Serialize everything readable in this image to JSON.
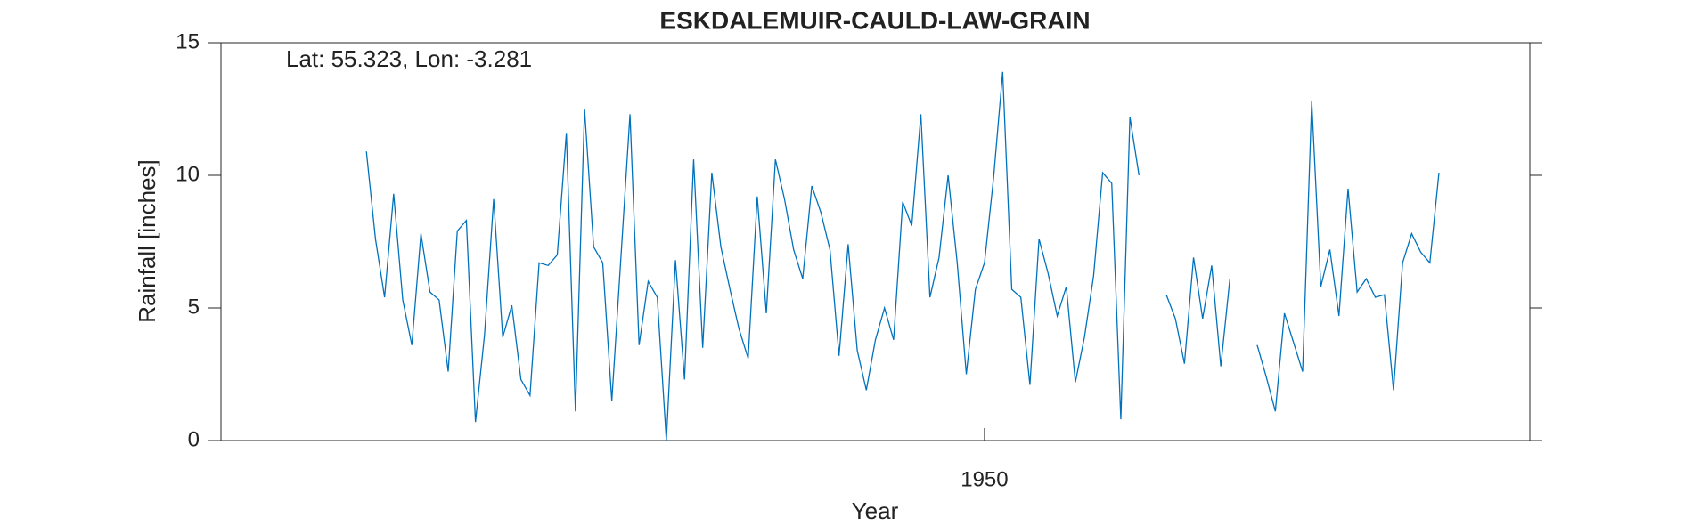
{
  "chart_data": {
    "type": "line",
    "title": "ESKDALEMUIR-CAULD-LAW-GRAIN",
    "annotation": "Lat: 55.323, Lon: -3.281",
    "x_label": "Year",
    "y_label": "Rainfall [inches]",
    "xlim": [
      1866,
      2010
    ],
    "xticks": [
      1950
    ],
    "ylim": [
      0,
      15
    ],
    "yticks": [
      0,
      5,
      10,
      15
    ],
    "x": [
      1882,
      1883,
      1884,
      1885,
      1886,
      1887,
      1888,
      1889,
      1890,
      1891,
      1892,
      1893,
      1894,
      1895,
      1896,
      1897,
      1898,
      1899,
      1900,
      1901,
      1902,
      1903,
      1904,
      1905,
      1906,
      1907,
      1908,
      1909,
      1910,
      1911,
      1912,
      1913,
      1914,
      1915,
      1916,
      1917,
      1918,
      1919,
      1920,
      1921,
      1922,
      1923,
      1924,
      1925,
      1926,
      1927,
      1928,
      1929,
      1930,
      1931,
      1932,
      1933,
      1934,
      1935,
      1936,
      1937,
      1938,
      1939,
      1940,
      1941,
      1942,
      1943,
      1944,
      1945,
      1946,
      1947,
      1948,
      1949,
      1950,
      1951,
      1952,
      1953,
      1954,
      1955,
      1956,
      1957,
      1958,
      1959,
      1960,
      1961,
      1962,
      1963,
      1964,
      1965,
      1966,
      1967,
      1968,
      1969,
      1970,
      1971,
      1972,
      1973,
      1974,
      1975,
      1976,
      1977,
      1978,
      1979,
      1980,
      1981,
      1982,
      1983,
      1984,
      1985,
      1986,
      1987,
      1988,
      1989,
      1990,
      1991,
      1992,
      1993,
      1994,
      1995,
      1996,
      1997,
      1998,
      1999,
      2000
    ],
    "series": [
      {
        "color": "#0072bd",
        "values": [
          10.9,
          7.6,
          5.4,
          9.3,
          5.3,
          3.6,
          7.8,
          5.6,
          5.3,
          2.6,
          7.9,
          8.3,
          0.7,
          4.0,
          9.1,
          3.9,
          5.1,
          2.3,
          1.7,
          6.7,
          6.6,
          7.0,
          11.6,
          1.1,
          12.5,
          7.3,
          6.7,
          1.5,
          6.9,
          12.3,
          3.6,
          6.0,
          5.4,
          0.0,
          6.8,
          2.3,
          10.6,
          3.5,
          10.1,
          7.3,
          5.7,
          4.2,
          3.1,
          9.2,
          4.8,
          10.6,
          9.1,
          7.2,
          6.1,
          9.6,
          8.6,
          7.2,
          3.2,
          7.4,
          3.4,
          1.9,
          3.8,
          5.0,
          3.8,
          9.0,
          8.1,
          12.3,
          5.4,
          6.9,
          10.0,
          6.7,
          2.5,
          5.7,
          6.7,
          9.9,
          13.9,
          5.7,
          5.4,
          2.1,
          7.6,
          6.3,
          4.7,
          5.8,
          2.2,
          3.9,
          6.2,
          10.1,
          9.7,
          0.8,
          12.2,
          10.0,
          null,
          null,
          5.5,
          4.6,
          2.9,
          6.9,
          4.6,
          6.6,
          2.8,
          6.1,
          null,
          null,
          3.6,
          2.4,
          1.1,
          4.8,
          3.7,
          2.6,
          12.8,
          5.8,
          7.2,
          4.7,
          9.5,
          5.6,
          6.1,
          5.4,
          5.5,
          1.9,
          6.7,
          7.8,
          7.1,
          6.7,
          10.1
        ]
      }
    ]
  }
}
